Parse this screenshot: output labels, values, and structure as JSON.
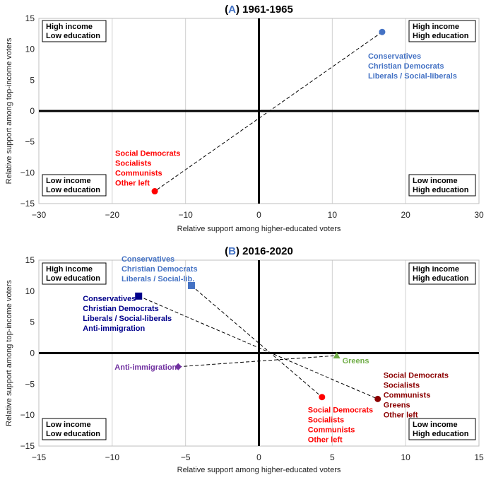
{
  "chart_data": [
    {
      "type": "scatter",
      "panel_label": "A",
      "title": "1961-1965",
      "xlabel": "Relative support among higher-educated voters",
      "ylabel": "Relative support among top-income voters",
      "xlim": [
        -30,
        30
      ],
      "ylim": [
        -15,
        15
      ],
      "xticks": [
        -30,
        -20,
        -10,
        0,
        10,
        20,
        30
      ],
      "yticks": [
        -15,
        -10,
        -5,
        0,
        5,
        10,
        15
      ],
      "grid": "vertical",
      "quadrants": [
        {
          "pos": "top-left",
          "lines": [
            "High income",
            "Low education"
          ]
        },
        {
          "pos": "top-right",
          "lines": [
            "High income",
            "High education"
          ]
        },
        {
          "pos": "bottom-left",
          "lines": [
            "Low income",
            "Low education"
          ]
        },
        {
          "pos": "bottom-right",
          "lines": [
            "Low income",
            "High education"
          ]
        }
      ],
      "points": [
        {
          "name": "right",
          "x": 16.8,
          "y": 12.8,
          "marker": "circle",
          "color": "#4472C4",
          "label": [
            "Conservatives",
            "Christian Democrats",
            "Liberals / Social-liberals"
          ],
          "label_anchor": "below"
        },
        {
          "name": "left",
          "x": -14.2,
          "y": -13.0,
          "marker": "circle",
          "color": "#FF0000",
          "label": [
            "Social Democrats",
            "Socialists",
            "Communists",
            "Other left"
          ],
          "label_anchor": "above"
        }
      ],
      "connections": [
        [
          "right",
          "left"
        ]
      ]
    },
    {
      "type": "scatter",
      "panel_label": "B",
      "title": "2016-2020",
      "xlabel": "Relative support among higher-educated voters",
      "ylabel": "Relative support among top-income voters",
      "xlim": [
        -15,
        15
      ],
      "ylim": [
        -15,
        15
      ],
      "xticks": [
        -15,
        -10,
        -5,
        0,
        5,
        10,
        15
      ],
      "yticks": [
        -15,
        -10,
        -5,
        0,
        5,
        10,
        15
      ],
      "grid": "vertical",
      "quadrants": [
        {
          "pos": "top-left",
          "lines": [
            "High income",
            "Low education"
          ]
        },
        {
          "pos": "top-right",
          "lines": [
            "High income",
            "High education"
          ]
        },
        {
          "pos": "bottom-left",
          "lines": [
            "Low income",
            "Low education"
          ]
        },
        {
          "pos": "bottom-right",
          "lines": [
            "Low income",
            "High education"
          ]
        }
      ],
      "points": [
        {
          "name": "right-lib",
          "x": -4.6,
          "y": 10.9,
          "marker": "square",
          "color": "#4472C4",
          "label": [
            "Conservatives",
            "Christian Democrats",
            "Liberals / Social-lib."
          ],
          "label_anchor": "upper-left"
        },
        {
          "name": "right-anti",
          "x": -8.2,
          "y": 9.2,
          "marker": "square",
          "color": "#00008B",
          "label": [
            "Conservatives",
            "Christian Democrats",
            "Liberals / Social-liberals",
            "Anti-immigration"
          ],
          "label_anchor": "below-left"
        },
        {
          "name": "greens",
          "x": 5.3,
          "y": -0.4,
          "marker": "triangle",
          "color": "#70AD47",
          "label": [
            "Greens"
          ],
          "label_anchor": "right"
        },
        {
          "name": "anti-imm",
          "x": -5.5,
          "y": -2.2,
          "marker": "diamond",
          "color": "#7030A0",
          "label": [
            "Anti-immigration"
          ],
          "label_anchor": "left"
        },
        {
          "name": "left-red",
          "x": 4.3,
          "y": -7.1,
          "marker": "circle",
          "color": "#FF0000",
          "label": [
            "Social Democrats",
            "Socialists",
            "Communists",
            "Other left"
          ],
          "label_anchor": "below"
        },
        {
          "name": "left-dark",
          "x": 8.1,
          "y": -7.4,
          "marker": "circle",
          "color": "#8B0000",
          "label": [
            "Social Democrats",
            "Socialists",
            "Communists",
            "Greens",
            "Other left"
          ],
          "label_anchor": "right"
        }
      ],
      "connections": [
        [
          "right-lib",
          "left-red"
        ],
        [
          "right-anti",
          "left-dark"
        ],
        [
          "anti-imm",
          "greens"
        ]
      ]
    }
  ]
}
